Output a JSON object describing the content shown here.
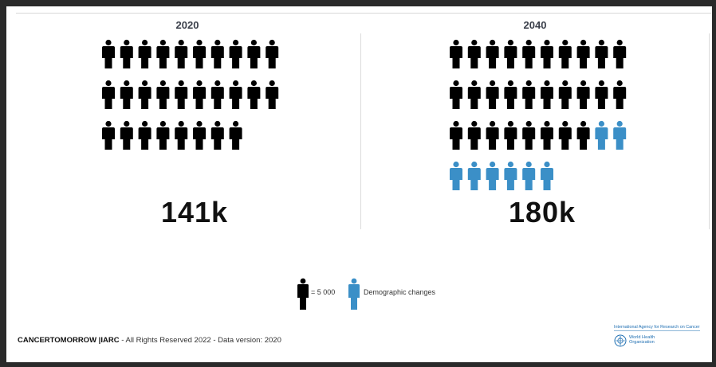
{
  "chart_data": {
    "type": "pictograph",
    "unit_label": "= 5 000",
    "panels": [
      {
        "year": "2020",
        "total_label": "141k",
        "base_icons": 28,
        "demographic_icons": 0
      },
      {
        "year": "2040",
        "total_label": "180k",
        "base_icons": 28,
        "demographic_icons": 8
      }
    ],
    "legend": [
      {
        "name": "= 5 000",
        "color": "#000000"
      },
      {
        "name": "Demographic changes",
        "color": "#3b8fc7"
      }
    ],
    "colors": {
      "base": "#000000",
      "demographic": "#3b8fc7"
    }
  },
  "footer": {
    "brand": "CANCERTOMORROW |IARC",
    "text": " - All Rights Reserved 2022 - Data version: 2020"
  },
  "organization": {
    "iarc": "International Agency for Research on Cancer",
    "who_line1": "World Health",
    "who_line2": "Organization",
    "logo_icon": "who-emblem-icon"
  }
}
